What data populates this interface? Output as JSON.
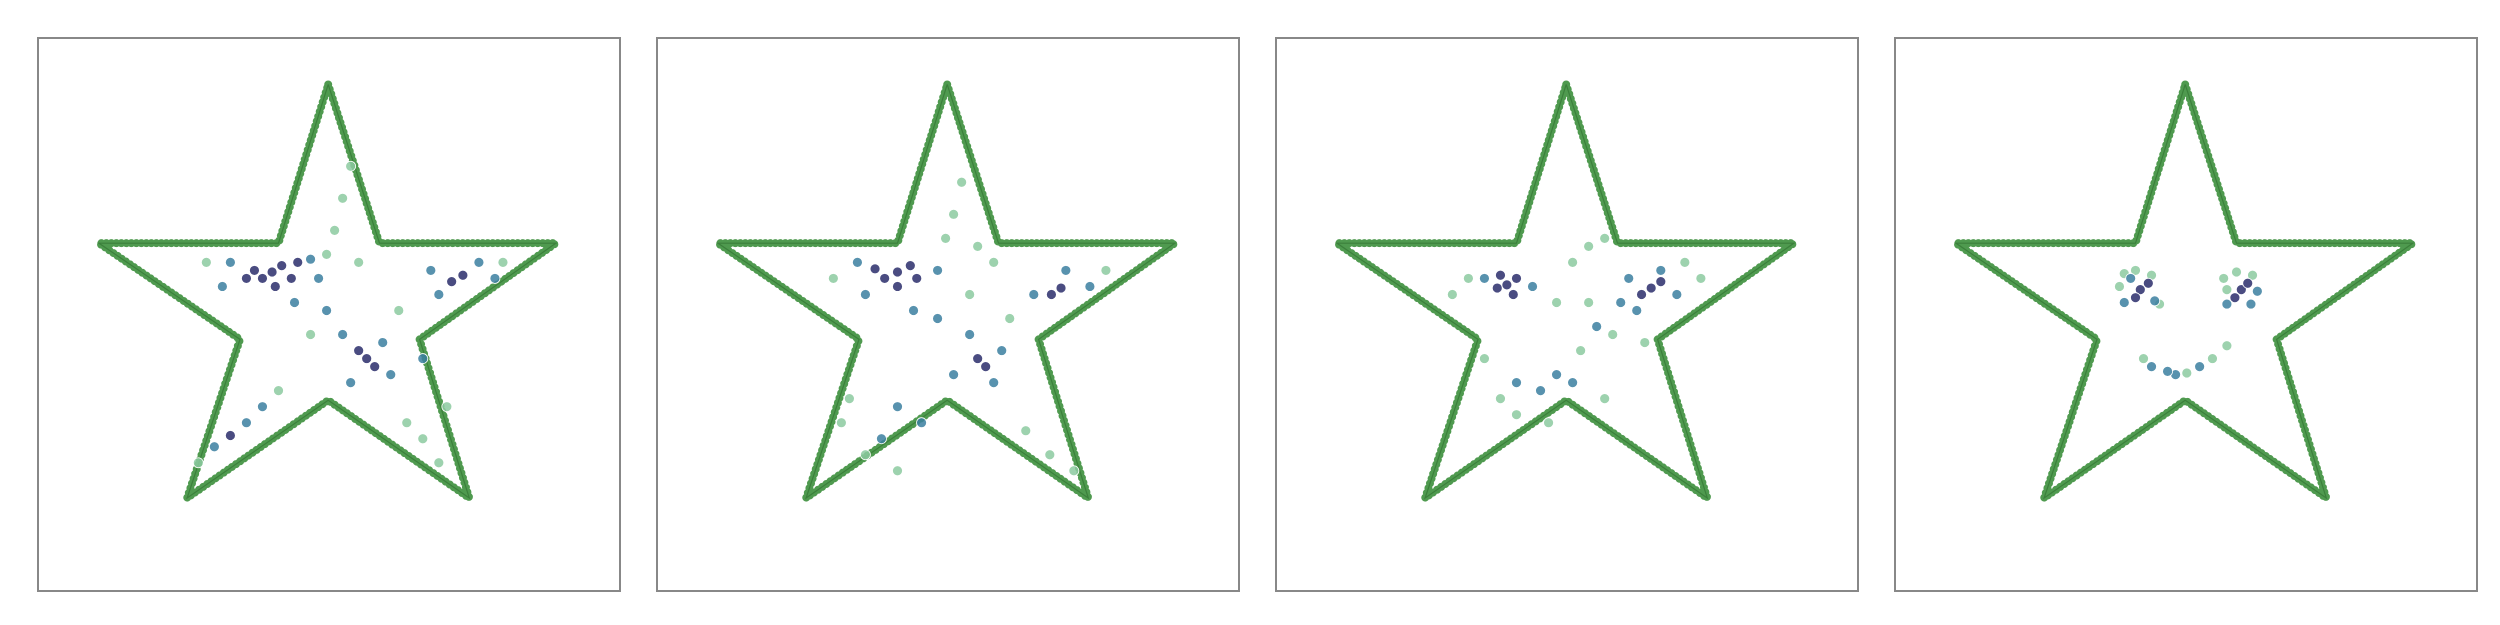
{
  "chart_data": [
    {
      "type": "scatter",
      "xlim": [
        0,
        363
      ],
      "ylim": [
        345,
        0
      ],
      "outline": {
        "color": "#4f9a4f",
        "x": [
          181,
          213,
          323,
          238,
          269,
          181,
          93,
          126,
          38,
          150,
          181
        ],
        "y": [
          29,
          128,
          128,
          188,
          287,
          226,
          287,
          188,
          128,
          128,
          29
        ]
      },
      "series": [
        {
          "color": "#8ccaa0",
          "x": [
            185,
            190,
            195,
            180,
            230,
            240,
            250,
            100,
            150,
            225,
            290,
            105,
            200,
            170,
            255
          ],
          "y": [
            120,
            100,
            80,
            135,
            240,
            250,
            265,
            265,
            220,
            170,
            140,
            140,
            140,
            185,
            230
          ]
        },
        {
          "color": "#3b7fa0",
          "x": [
            120,
            170,
            175,
            115,
            190,
            215,
            220,
            195,
            240,
            250,
            275,
            285,
            245,
            130,
            110,
            140,
            180,
            160
          ],
          "y": [
            140,
            138,
            150,
            155,
            185,
            190,
            210,
            215,
            200,
            160,
            140,
            150,
            145,
            240,
            255,
            230,
            170,
            165
          ]
        },
        {
          "color": "#2a2d6b",
          "x": [
            146,
            140,
            152,
            135,
            158,
            148,
            130,
            162,
            205,
            210,
            200,
            265,
            258,
            120
          ],
          "y": [
            146,
            150,
            142,
            145,
            150,
            155,
            150,
            140,
            200,
            205,
            195,
            148,
            152,
            248
          ]
        }
      ]
    },
    {
      "type": "scatter",
      "xlim": [
        0,
        363
      ],
      "ylim": [
        345,
        0
      ],
      "outline": {
        "color": "#4f9a4f",
        "x": [
          181,
          213,
          323,
          238,
          269,
          181,
          93,
          126,
          38,
          150,
          181
        ],
        "y": [
          29,
          128,
          128,
          188,
          287,
          226,
          287,
          188,
          128,
          128,
          29
        ]
      },
      "series": [
        {
          "color": "#8ccaa0",
          "x": [
            185,
            190,
            180,
            200,
            120,
            130,
            150,
            115,
            230,
            245,
            260,
            280,
            110,
            220,
            195,
            210
          ],
          "y": [
            110,
            90,
            125,
            130,
            225,
            260,
            270,
            240,
            245,
            260,
            270,
            145,
            150,
            175,
            160,
            140
          ]
        },
        {
          "color": "#3b7fa0",
          "x": [
            125,
            175,
            130,
            255,
            270,
            235,
            195,
            215,
            210,
            185,
            150,
            165,
            140,
            175,
            160
          ],
          "y": [
            140,
            145,
            160,
            145,
            155,
            160,
            185,
            195,
            215,
            210,
            230,
            240,
            250,
            175,
            170
          ]
        },
        {
          "color": "#2a2d6b",
          "x": [
            150,
            142,
            158,
            136,
            162,
            150,
            252,
            246,
            200,
            205
          ],
          "y": [
            146,
            150,
            142,
            144,
            150,
            155,
            156,
            160,
            200,
            205
          ]
        }
      ]
    },
    {
      "type": "scatter",
      "xlim": [
        0,
        363
      ],
      "ylim": [
        345,
        0
      ],
      "outline": {
        "color": "#4f9a4f",
        "x": [
          181,
          213,
          323,
          238,
          269,
          181,
          93,
          126,
          38,
          150,
          181
        ],
        "y": [
          29,
          128,
          128,
          188,
          287,
          226,
          287,
          188,
          128,
          128,
          29
        ]
      },
      "series": [
        {
          "color": "#8ccaa0",
          "x": [
            185,
            195,
            205,
            175,
            195,
            210,
            190,
            150,
            140,
            130,
            120,
            110,
            255,
            265,
            230,
            170,
            205
          ],
          "y": [
            140,
            130,
            125,
            165,
            165,
            185,
            195,
            235,
            225,
            200,
            150,
            160,
            140,
            150,
            190,
            240,
            225
          ]
        },
        {
          "color": "#3b7fa0",
          "x": [
            130,
            160,
            220,
            250,
            225,
            200,
            175,
            165,
            185,
            150,
            240,
            215
          ],
          "y": [
            150,
            155,
            150,
            160,
            170,
            180,
            210,
            220,
            215,
            215,
            145,
            165
          ]
        },
        {
          "color": "#2a2d6b",
          "x": [
            144,
            138,
            150,
            140,
            148,
            234,
            228,
            240
          ],
          "y": [
            154,
            156,
            150,
            148,
            160,
            156,
            160,
            152
          ]
        }
      ]
    },
    {
      "type": "scatter",
      "xlim": [
        0,
        363
      ],
      "ylim": [
        345,
        0
      ],
      "outline": {
        "color": "#4f9a4f",
        "x": [
          181,
          213,
          323,
          238,
          269,
          181,
          93,
          126,
          38,
          150,
          181
        ],
        "y": [
          29,
          128,
          128,
          188,
          287,
          226,
          287,
          188,
          128,
          128,
          29
        ]
      },
      "series": [
        {
          "color": "#8ccaa0",
          "x": [
            140,
            143,
            150,
            160,
            205,
            207,
            213,
            223,
            155,
            198,
            207,
            182,
            165
          ],
          "y": [
            155,
            147,
            145,
            148,
            150,
            157,
            146,
            148,
            200,
            200,
            192,
            209,
            166
          ]
        },
        {
          "color": "#3b7fa0",
          "x": [
            143,
            147,
            162,
            207,
            222,
            226,
            160,
            175,
            190,
            170
          ],
          "y": [
            165,
            150,
            164,
            166,
            166,
            158,
            205,
            210,
            205,
            208
          ]
        },
        {
          "color": "#2a2d6b",
          "x": [
            153,
            158,
            150,
            216,
            220,
            212
          ],
          "y": [
            157,
            153,
            162,
            157,
            153,
            162
          ]
        }
      ]
    }
  ]
}
